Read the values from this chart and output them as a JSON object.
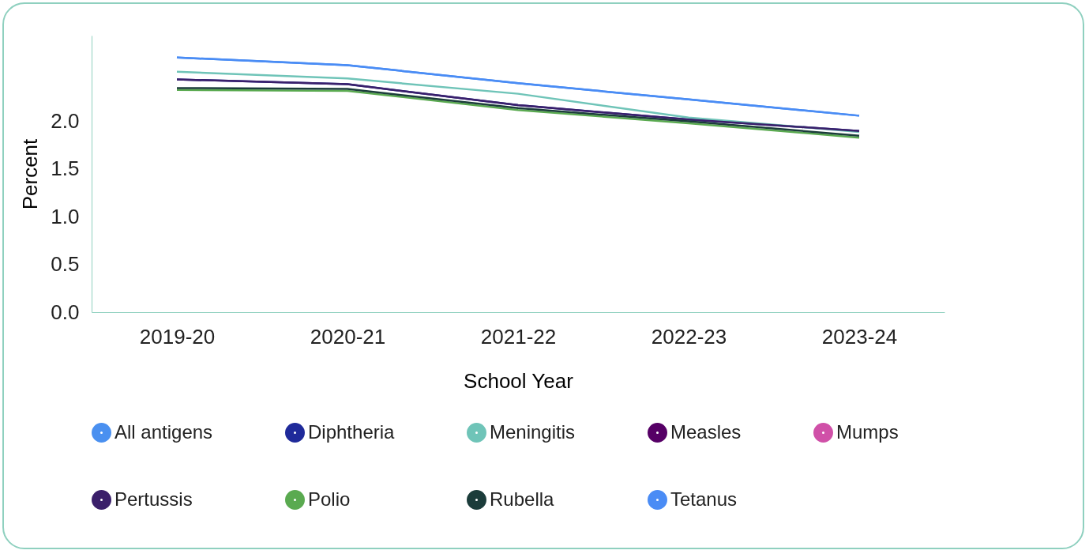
{
  "chart_data": {
    "type": "line",
    "xlabel": "School Year",
    "ylabel": "Percent",
    "categories": [
      "2019-20",
      "2020-21",
      "2021-22",
      "2022-23",
      "2023-24"
    ],
    "ylim": [
      0,
      2.9
    ],
    "yticks": [
      {
        "value": 0,
        "label": "0.0"
      },
      {
        "value": 0.5,
        "label": "0.5"
      },
      {
        "value": 1,
        "label": "1.0"
      },
      {
        "value": 1.5,
        "label": "1.5"
      },
      {
        "value": 2,
        "label": "2.0"
      }
    ],
    "grid": false,
    "legend": "bottom",
    "series": [
      {
        "name": "All antigens",
        "color": "#4a90f0",
        "values": [
          2.67,
          2.59,
          2.4,
          2.23,
          2.06
        ]
      },
      {
        "name": "Diphtheria",
        "color": "#1f2a9a",
        "values": [
          2.44,
          2.39,
          2.17,
          2.02,
          1.9
        ]
      },
      {
        "name": "Meningitis",
        "color": "#6fc4b8",
        "values": [
          2.52,
          2.45,
          2.29,
          2.04,
          1.89
        ]
      },
      {
        "name": "Measles",
        "color": "#560066",
        "values": [
          null,
          null,
          null,
          null,
          null
        ]
      },
      {
        "name": "Mumps",
        "color": "#d050a8",
        "values": [
          null,
          null,
          null,
          null,
          null
        ]
      },
      {
        "name": "Pertussis",
        "color": "#3a1f6a",
        "values": [
          2.44,
          2.39,
          2.17,
          2.02,
          1.9
        ]
      },
      {
        "name": "Polio",
        "color": "#5aaa50",
        "values": [
          2.33,
          2.32,
          2.12,
          1.98,
          1.83
        ]
      },
      {
        "name": "Rubella",
        "color": "#1b3c3a",
        "values": [
          2.35,
          2.34,
          2.14,
          2.0,
          1.85
        ]
      },
      {
        "name": "Tetanus",
        "color": "#4a8cf5",
        "values": [
          2.67,
          2.59,
          2.4,
          2.23,
          2.06
        ]
      }
    ]
  }
}
